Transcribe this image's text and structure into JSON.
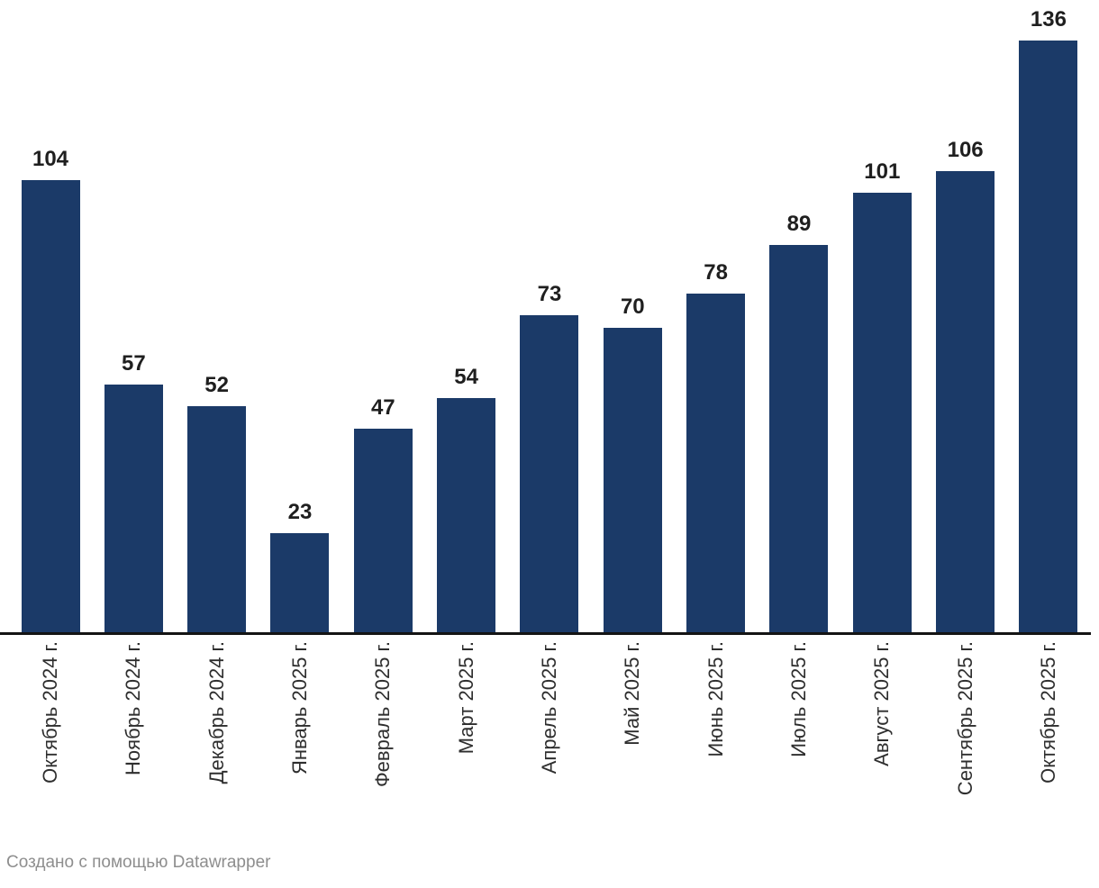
{
  "chart_data": {
    "type": "bar",
    "categories": [
      "Октябрь 2024 г.",
      "Ноябрь 2024 г.",
      "Декабрь 2024 г.",
      "Январь 2025 г.",
      "Февраль 2025 г.",
      "Март 2025 г.",
      "Апрель 2025 г.",
      "Май 2025 г.",
      "Июнь 2025 г.",
      "Июль 2025 г.",
      "Август 2025 г.",
      "Сентябрь 2025 г.",
      "Октябрь 2025 г."
    ],
    "values": [
      104,
      57,
      52,
      23,
      47,
      54,
      73,
      70,
      78,
      89,
      101,
      106,
      136
    ],
    "title": "",
    "xlabel": "",
    "ylabel": "",
    "ylim": [
      0,
      145
    ],
    "grid": false,
    "legend": false,
    "value_labels_shown": true,
    "bar_color": "#1b3a68",
    "value_label_color": "#1f1f1f",
    "axis_label_color": "#2e2e2e",
    "axis_line_color": "#141414",
    "footer_color": "#8e8e8e"
  },
  "footer": {
    "credit": "Создано с помощью Datawrapper"
  }
}
